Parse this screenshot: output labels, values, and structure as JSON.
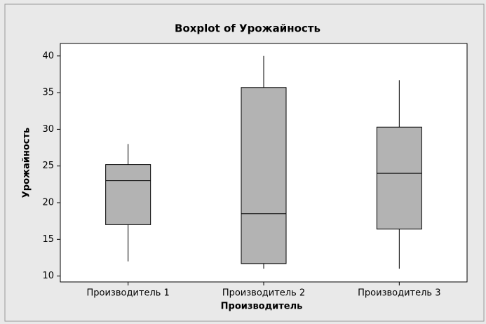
{
  "chart_data": {
    "type": "box",
    "title": "Boxplot of Урожайность",
    "x_label": "Производитель",
    "y_label": "Урожайность",
    "categories": [
      "Производитель 1",
      "Производитель 2",
      "Производитель 3"
    ],
    "boxes": [
      {
        "min": 12,
        "q1": 17,
        "median": 23,
        "q3": 25.2,
        "max": 28
      },
      {
        "min": 11,
        "q1": 11.7,
        "median": 18.5,
        "q3": 35.7,
        "max": 40
      },
      {
        "min": 11,
        "q1": 16.4,
        "median": 24,
        "q3": 30.3,
        "max": 36.7
      }
    ],
    "color": "#b3b3b3",
    "ylim": [
      9.2,
      41.7
    ],
    "yticks": [
      10,
      15,
      20,
      25,
      30,
      35,
      40
    ]
  }
}
